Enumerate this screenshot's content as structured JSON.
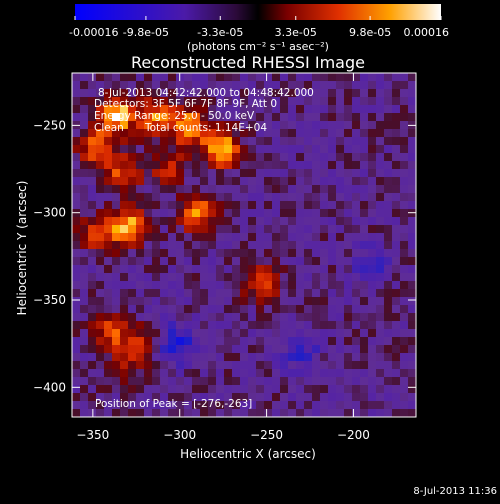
{
  "chart_data": {
    "type": "heatmap",
    "title": "Reconstructed RHESSI Image",
    "xlabel": "Heliocentric X (arcsec)",
    "ylabel": "Heliocentric Y (arcsec)",
    "xlim": [
      -362,
      -164
    ],
    "ylim": [
      -417,
      -220
    ],
    "xticks": [
      -350,
      -300,
      -250,
      -200
    ],
    "yticks": [
      -250,
      -300,
      -350,
      -400
    ],
    "colorbar": {
      "range": [
        -0.00016,
        0.00016
      ],
      "tick_values": [
        -0.00016,
        -9.8e-05,
        -3.3e-05,
        3.3e-05,
        9.8e-05,
        0.00016
      ],
      "tick_labels": [
        "-0.00016",
        "-9.8e-05",
        "-3.3e-05",
        "3.3e-05",
        "9.8e-05",
        "0.00016"
      ],
      "unit_label": "(photons cm⁻² s⁻¹ asec⁻²)"
    },
    "annotations": {
      "time_range": "8-Jul-2013 04:42:42.000 to 04:48:42.000",
      "detectors": "Detectors: 3F 5F 6F 7F 8F 9F, Att 0",
      "energy_range": "Energy Range: 25.0 - 50.0 keV",
      "method": "Clean",
      "total_counts": "Total counts: 1.14E+04",
      "peak_position": "Position of Peak = [-276,-263]"
    },
    "sources": [
      {
        "x": -336,
        "y": -244,
        "intensity": 0.00016
      },
      {
        "x": -314,
        "y": -245,
        "intensity": 0.00012
      },
      {
        "x": -295,
        "y": -250,
        "intensity": 0.00014
      },
      {
        "x": -276,
        "y": -263,
        "intensity": 0.00016
      },
      {
        "x": -348,
        "y": -262,
        "intensity": 0.00011
      },
      {
        "x": -332,
        "y": -277,
        "intensity": 0.0001
      },
      {
        "x": -306,
        "y": -275,
        "intensity": 8e-05
      },
      {
        "x": -290,
        "y": -300,
        "intensity": 0.00013
      },
      {
        "x": -330,
        "y": -308,
        "intensity": 0.00015
      },
      {
        "x": -348,
        "y": -312,
        "intensity": 9e-05
      },
      {
        "x": -253,
        "y": -340,
        "intensity": 0.0001
      },
      {
        "x": -340,
        "y": -368,
        "intensity": 0.0001
      },
      {
        "x": -322,
        "y": -375,
        "intensity": 8e-05
      },
      {
        "x": -333,
        "y": -390,
        "intensity": 6e-05
      }
    ],
    "negative_spots": [
      {
        "x": -302,
        "y": -375,
        "intensity": -9e-05
      },
      {
        "x": -230,
        "y": -380,
        "intensity": -6e-05
      },
      {
        "x": -190,
        "y": -330,
        "intensity": -5e-05
      }
    ]
  },
  "timestamp": "8-Jul-2013 11:36",
  "colors": {
    "background": "#000000",
    "text": "#ffffff",
    "colormap": [
      "#0000ff",
      "#1818c0",
      "#5018a0",
      "#6a2e9a",
      "#3a1020",
      "#600000",
      "#c81e00",
      "#ff6800",
      "#ffb400",
      "#ffffff"
    ]
  }
}
